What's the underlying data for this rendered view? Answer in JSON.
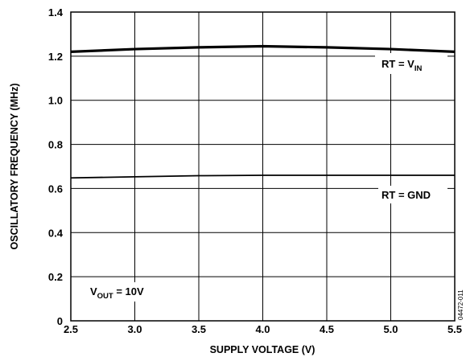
{
  "chart_data": {
    "type": "line",
    "title": "",
    "xlabel": "SUPPLY VOLTAGE (V)",
    "ylabel": "OSCILLATORY FREQUENCY (MHz)",
    "xlim": [
      2.5,
      5.5
    ],
    "ylim": [
      0,
      1.4
    ],
    "xticks": [
      "2.5",
      "3.0",
      "3.5",
      "4.0",
      "4.5",
      "5.0",
      "5.5"
    ],
    "yticks": [
      "0",
      "0.2",
      "0.4",
      "0.6",
      "0.8",
      "1.0",
      "1.2",
      "1.4"
    ],
    "grid": true,
    "series": [
      {
        "name": "RT = VIN",
        "label_main": "RT = V",
        "label_sub": "IN",
        "x": [
          2.5,
          3.0,
          3.5,
          4.0,
          4.5,
          5.0,
          5.5
        ],
        "y": [
          1.22,
          1.232,
          1.24,
          1.245,
          1.24,
          1.232,
          1.22
        ],
        "color": "#000000"
      },
      {
        "name": "RT = GND",
        "label_main": "RT = GND",
        "label_sub": "",
        "x": [
          2.5,
          3.0,
          3.5,
          4.0,
          4.5,
          5.0,
          5.5
        ],
        "y": [
          0.648,
          0.653,
          0.658,
          0.66,
          0.66,
          0.66,
          0.66
        ],
        "color": "#000000"
      }
    ],
    "annotation": {
      "main": "V",
      "sub": "OUT",
      "rest": " = 10V"
    },
    "figure_id": "04472-011"
  }
}
